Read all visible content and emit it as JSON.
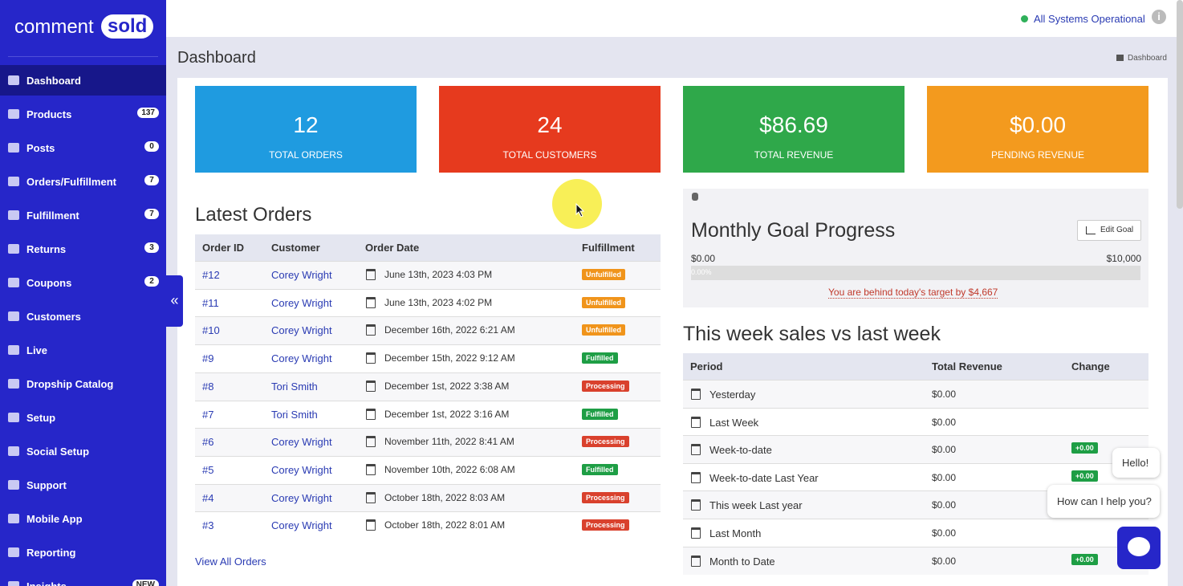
{
  "header": {
    "status": "All Systems Operational",
    "title": "Dashboard",
    "breadcrumb": "Dashboard"
  },
  "sidebar": {
    "logo_left": "comment",
    "logo_right": "sold",
    "items": [
      {
        "label": "Dashboard"
      },
      {
        "label": "Products",
        "badge": "137"
      },
      {
        "label": "Posts",
        "badge": "0"
      },
      {
        "label": "Orders/Fulfillment",
        "badge": "7"
      },
      {
        "label": "Fulfillment",
        "badge": "7"
      },
      {
        "label": "Returns",
        "badge": "3"
      },
      {
        "label": "Coupons",
        "badge": "2"
      },
      {
        "label": "Customers"
      },
      {
        "label": "Live"
      },
      {
        "label": "Dropship Catalog"
      },
      {
        "label": "Setup"
      },
      {
        "label": "Social Setup"
      },
      {
        "label": "Support"
      },
      {
        "label": "Mobile App"
      },
      {
        "label": "Reporting"
      },
      {
        "label": "Insights",
        "badge": "NEW"
      }
    ]
  },
  "stats": [
    {
      "value": "12",
      "label": "TOTAL ORDERS",
      "color": "#1f9be0"
    },
    {
      "value": "24",
      "label": "TOTAL CUSTOMERS",
      "color": "#e63a1e"
    },
    {
      "value": "$86.69",
      "label": "TOTAL REVENUE",
      "color": "#2fa84a"
    },
    {
      "value": "$0.00",
      "label": "PENDING REVENUE",
      "color": "#f39a1e"
    }
  ],
  "latest_orders": {
    "title": "Latest Orders",
    "columns": [
      "Order ID",
      "Customer",
      "Order Date",
      "Fulfillment"
    ],
    "rows": [
      {
        "id": "#12",
        "customer": "Corey Wright",
        "date": "June 13th, 2023 4:03 PM",
        "status": "Unfulfilled",
        "status_color": "#f0941b"
      },
      {
        "id": "#11",
        "customer": "Corey Wright",
        "date": "June 13th, 2023 4:02 PM",
        "status": "Unfulfilled",
        "status_color": "#f0941b"
      },
      {
        "id": "#10",
        "customer": "Corey Wright",
        "date": "December 16th, 2022 6:21 AM",
        "status": "Unfulfilled",
        "status_color": "#f0941b"
      },
      {
        "id": "#9",
        "customer": "Corey Wright",
        "date": "December 15th, 2022 9:12 AM",
        "status": "Fulfilled",
        "status_color": "#1e9e45"
      },
      {
        "id": "#8",
        "customer": "Tori Smith",
        "date": "December 1st, 2022 3:38 AM",
        "status": "Processing",
        "status_color": "#d9412d"
      },
      {
        "id": "#7",
        "customer": "Tori Smith",
        "date": "December 1st, 2022 3:16 AM",
        "status": "Fulfilled",
        "status_color": "#1e9e45"
      },
      {
        "id": "#6",
        "customer": "Corey Wright",
        "date": "November 11th, 2022 8:41 AM",
        "status": "Processing",
        "status_color": "#d9412d"
      },
      {
        "id": "#5",
        "customer": "Corey Wright",
        "date": "November 10th, 2022 6:08 AM",
        "status": "Fulfilled",
        "status_color": "#1e9e45"
      },
      {
        "id": "#4",
        "customer": "Corey Wright",
        "date": "October 18th, 2022 8:03 AM",
        "status": "Processing",
        "status_color": "#d9412d"
      },
      {
        "id": "#3",
        "customer": "Corey Wright",
        "date": "October 18th, 2022 8:01 AM",
        "status": "Processing",
        "status_color": "#d9412d"
      }
    ],
    "link": "View All Orders"
  },
  "goal": {
    "title": "Monthly Goal Progress",
    "button": "Edit Goal",
    "min": "$0.00",
    "max": "$10,000",
    "progress": "0.00%",
    "message": "You are behind today's target by $4,667"
  },
  "weekly": {
    "title": "This week sales vs last week",
    "columns": [
      "Period",
      "Total Revenue",
      "Change"
    ],
    "rows": [
      {
        "period": "Yesterday",
        "revenue": "$0.00"
      },
      {
        "period": "Last Week",
        "revenue": "$0.00"
      },
      {
        "period": "Week-to-date",
        "revenue": "$0.00",
        "change": "+0.00"
      },
      {
        "period": "Week-to-date Last Year",
        "revenue": "$0.00",
        "change": "+0.00"
      },
      {
        "period": "This week Last year",
        "revenue": "$0.00"
      },
      {
        "period": "Last Month",
        "revenue": "$0.00"
      },
      {
        "period": "Month to Date",
        "revenue": "$0.00",
        "change": "+0.00"
      }
    ]
  },
  "chat": {
    "greeting": "Hello!",
    "prompt": "How can I help you?"
  }
}
